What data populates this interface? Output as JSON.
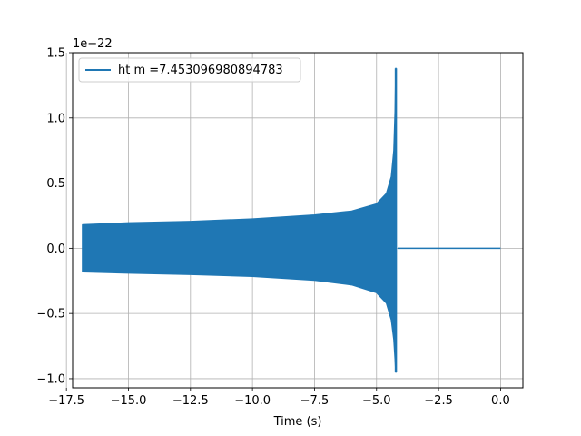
{
  "chart_data": {
    "type": "line",
    "title": "",
    "xlabel": "Time (s)",
    "ylabel": "",
    "y_scale_label": "1e−22",
    "xlim": [
      -17.25,
      0.9
    ],
    "ylim": [
      -1.07,
      1.5
    ],
    "grid": true,
    "legend_position": "top-left",
    "x_ticks": [
      {
        "value": -17.5,
        "label": "−17.5"
      },
      {
        "value": -15.0,
        "label": "−15.0"
      },
      {
        "value": -12.5,
        "label": "−12.5"
      },
      {
        "value": -10.0,
        "label": "−10.0"
      },
      {
        "value": -7.5,
        "label": "−7.5"
      },
      {
        "value": -5.0,
        "label": "−5.0"
      },
      {
        "value": -2.5,
        "label": "−2.5"
      },
      {
        "value": 0.0,
        "label": "0.0"
      }
    ],
    "y_ticks": [
      {
        "value": 1.5,
        "label": "1.5"
      },
      {
        "value": 1.0,
        "label": "1.0"
      },
      {
        "value": 0.5,
        "label": "0.5"
      },
      {
        "value": 0.0,
        "label": "0.0"
      },
      {
        "value": -0.5,
        "label": "−0.5"
      },
      {
        "value": -1.0,
        "label": "−1.0"
      }
    ],
    "series": [
      {
        "name": "ht m =7.453096980894783",
        "color": "#1f77b4",
        "envelope_upper": [
          [
            -16.85,
            0.18
          ],
          [
            -15.0,
            0.195
          ],
          [
            -12.5,
            0.205
          ],
          [
            -10.0,
            0.225
          ],
          [
            -7.5,
            0.255
          ],
          [
            -6.0,
            0.285
          ],
          [
            -5.0,
            0.34
          ],
          [
            -4.6,
            0.42
          ],
          [
            -4.4,
            0.55
          ],
          [
            -4.3,
            0.75
          ],
          [
            -4.25,
            1.05
          ],
          [
            -4.22,
            1.38
          ]
        ],
        "envelope_lower": [
          [
            -16.85,
            -0.18
          ],
          [
            -15.0,
            -0.19
          ],
          [
            -12.5,
            -0.2
          ],
          [
            -10.0,
            -0.215
          ],
          [
            -7.5,
            -0.245
          ],
          [
            -6.0,
            -0.28
          ],
          [
            -5.0,
            -0.34
          ],
          [
            -4.6,
            -0.42
          ],
          [
            -4.4,
            -0.55
          ],
          [
            -4.3,
            -0.7
          ],
          [
            -4.25,
            -0.85
          ],
          [
            -4.22,
            -0.95
          ]
        ],
        "tail": [
          [
            -4.15,
            0.0
          ],
          [
            0.0,
            0.0
          ]
        ]
      }
    ]
  }
}
